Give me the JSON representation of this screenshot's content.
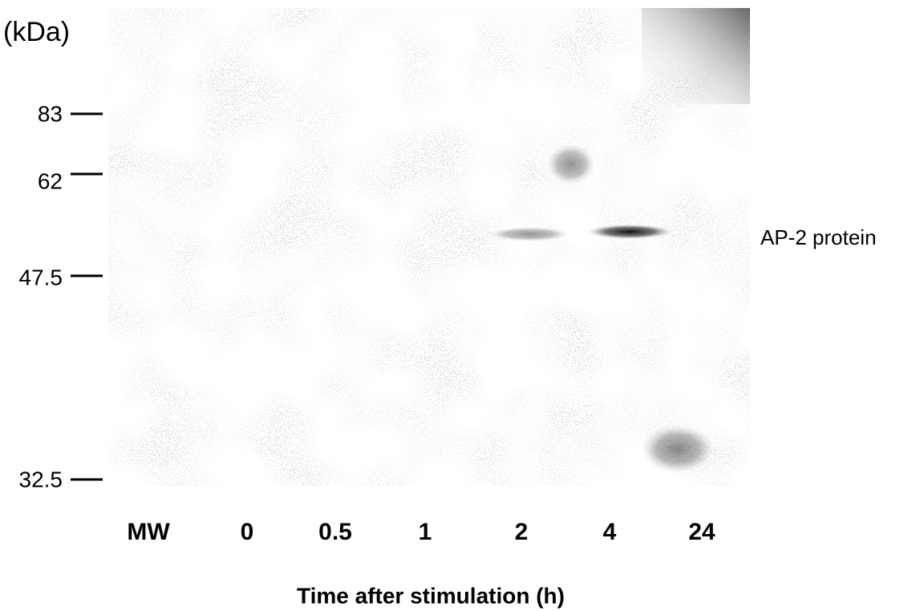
{
  "unit": "(kDa)",
  "markers": [
    "83",
    "62",
    "47.5",
    "32.5"
  ],
  "lanes": [
    "MW",
    "0",
    "0.5",
    "1",
    "2",
    "4",
    "24"
  ],
  "band_label": "AP-2 protein",
  "x_label": "Time after stimulation (h)"
}
